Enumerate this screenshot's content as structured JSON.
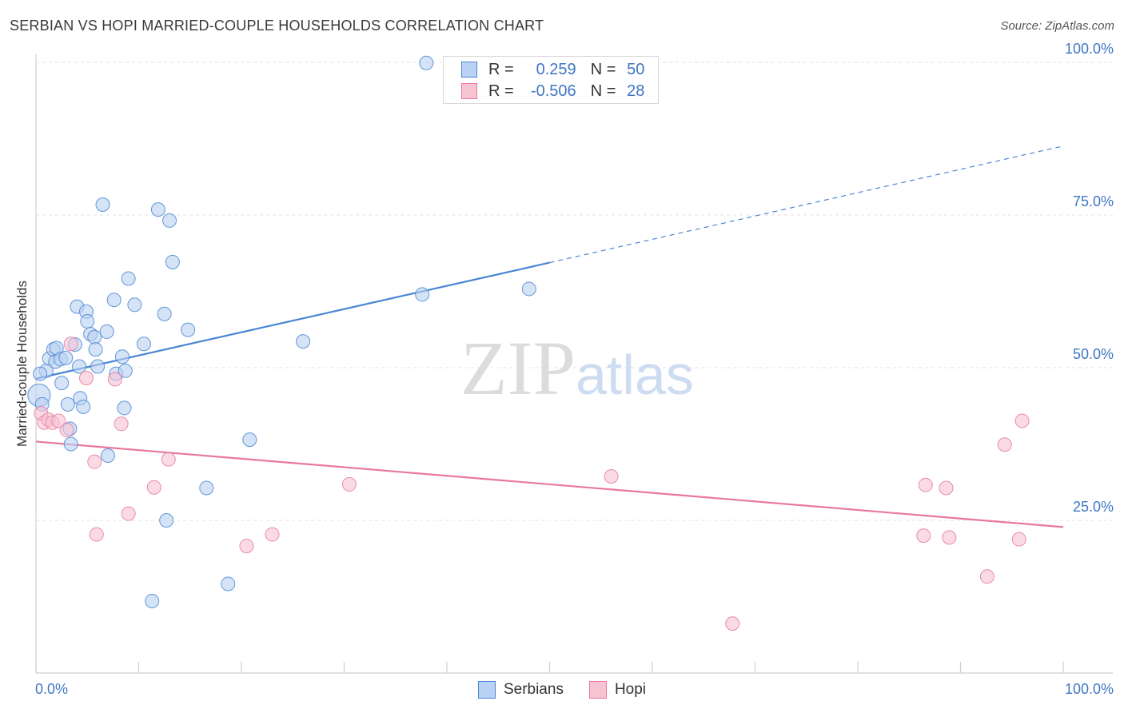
{
  "header": {
    "title": "SERBIAN VS HOPI MARRIED-COUPLE HOUSEHOLDS CORRELATION CHART",
    "source": "Source: ZipAtlas.com"
  },
  "watermark": {
    "zip": "ZIP",
    "atlas": "atlas"
  },
  "legend": {
    "r_label": "R =",
    "n_label": "N =",
    "rows": [
      {
        "name": "Serbians",
        "r": "0.259",
        "n": "50",
        "color": "#4a86d4",
        "fill": "#b9d1f2"
      },
      {
        "name": "Hopi",
        "r": "-0.506",
        "n": "28",
        "color": "#e8799d",
        "fill": "#f6c3d3"
      }
    ]
  },
  "chart_data": {
    "type": "scatter",
    "title": "SERBIAN VS HOPI MARRIED-COUPLE HOUSEHOLDS CORRELATION CHART",
    "xlabel": "",
    "ylabel": "Married-couple Households",
    "xlim": [
      0,
      100
    ],
    "ylim": [
      0,
      100
    ],
    "x_tick_labels": {
      "min": "0.0%",
      "max": "100.0%"
    },
    "y_ticks": [
      25,
      50,
      75,
      100
    ],
    "y_tick_labels": [
      "25.0%",
      "50.0%",
      "75.0%",
      "100.0%"
    ],
    "grid": true,
    "series": [
      {
        "name": "Serbians",
        "color": "#4a86d4",
        "fill": "#b9d1f2",
        "trend": {
          "x0": 0,
          "y0": 48.2,
          "x1": 50,
          "y1": 67.2,
          "dash_to_x": 100,
          "dash_to_y": 86.3
        },
        "points": [
          {
            "x": 0.3,
            "y": 45.5,
            "r": 14
          },
          {
            "x": 0.6,
            "y": 44.0
          },
          {
            "x": 1.0,
            "y": 49.5
          },
          {
            "x": 1.3,
            "y": 51.5
          },
          {
            "x": 1.7,
            "y": 53.0
          },
          {
            "x": 1.9,
            "y": 51.0
          },
          {
            "x": 2.0,
            "y": 53.2
          },
          {
            "x": 2.4,
            "y": 51.4
          },
          {
            "x": 2.5,
            "y": 47.5
          },
          {
            "x": 2.9,
            "y": 51.6
          },
          {
            "x": 3.1,
            "y": 44.0
          },
          {
            "x": 3.3,
            "y": 40.0
          },
          {
            "x": 3.4,
            "y": 37.5
          },
          {
            "x": 3.8,
            "y": 53.8
          },
          {
            "x": 4.0,
            "y": 60.0
          },
          {
            "x": 4.2,
            "y": 50.2
          },
          {
            "x": 4.3,
            "y": 45.0
          },
          {
            "x": 4.6,
            "y": 43.6
          },
          {
            "x": 4.9,
            "y": 59.2
          },
          {
            "x": 5.0,
            "y": 57.6
          },
          {
            "x": 5.3,
            "y": 55.5
          },
          {
            "x": 5.7,
            "y": 55.0
          },
          {
            "x": 5.8,
            "y": 53.0
          },
          {
            "x": 6.0,
            "y": 50.2
          },
          {
            "x": 6.5,
            "y": 76.7
          },
          {
            "x": 6.9,
            "y": 55.9
          },
          {
            "x": 7.0,
            "y": 35.6
          },
          {
            "x": 7.6,
            "y": 61.1
          },
          {
            "x": 7.8,
            "y": 49.0
          },
          {
            "x": 8.4,
            "y": 51.8
          },
          {
            "x": 8.6,
            "y": 43.4
          },
          {
            "x": 8.7,
            "y": 49.5
          },
          {
            "x": 9.0,
            "y": 64.6
          },
          {
            "x": 9.6,
            "y": 60.3
          },
          {
            "x": 10.5,
            "y": 53.9
          },
          {
            "x": 11.9,
            "y": 75.9
          },
          {
            "x": 12.5,
            "y": 58.8
          },
          {
            "x": 12.7,
            "y": 25.0
          },
          {
            "x": 13.0,
            "y": 74.1
          },
          {
            "x": 13.3,
            "y": 67.3
          },
          {
            "x": 14.8,
            "y": 56.2
          },
          {
            "x": 16.6,
            "y": 30.3
          },
          {
            "x": 18.7,
            "y": 14.6
          },
          {
            "x": 11.3,
            "y": 11.8
          },
          {
            "x": 20.8,
            "y": 38.2
          },
          {
            "x": 26.0,
            "y": 54.3
          },
          {
            "x": 37.6,
            "y": 62.0
          },
          {
            "x": 38.0,
            "y": 99.9
          },
          {
            "x": 48.0,
            "y": 62.9
          },
          {
            "x": 0.4,
            "y": 49.0
          }
        ]
      },
      {
        "name": "Hopi",
        "color": "#e8799d",
        "fill": "#f6c3d3",
        "trend": {
          "x0": 0,
          "y0": 37.9,
          "x1": 100,
          "y1": 23.9
        },
        "points": [
          {
            "x": 0.5,
            "y": 42.5
          },
          {
            "x": 0.8,
            "y": 41.0
          },
          {
            "x": 1.2,
            "y": 41.5
          },
          {
            "x": 1.6,
            "y": 41.0
          },
          {
            "x": 2.2,
            "y": 41.3
          },
          {
            "x": 3.0,
            "y": 39.8
          },
          {
            "x": 3.4,
            "y": 53.9
          },
          {
            "x": 4.9,
            "y": 48.3
          },
          {
            "x": 5.7,
            "y": 34.6
          },
          {
            "x": 5.9,
            "y": 22.7
          },
          {
            "x": 7.7,
            "y": 48.1
          },
          {
            "x": 8.3,
            "y": 40.8
          },
          {
            "x": 9.0,
            "y": 26.1
          },
          {
            "x": 11.5,
            "y": 30.4
          },
          {
            "x": 12.9,
            "y": 35.0
          },
          {
            "x": 20.5,
            "y": 20.8
          },
          {
            "x": 23.0,
            "y": 22.7
          },
          {
            "x": 30.5,
            "y": 30.9
          },
          {
            "x": 56.0,
            "y": 32.2
          },
          {
            "x": 67.8,
            "y": 8.1
          },
          {
            "x": 86.4,
            "y": 22.5
          },
          {
            "x": 86.6,
            "y": 30.8
          },
          {
            "x": 88.6,
            "y": 30.3
          },
          {
            "x": 88.9,
            "y": 22.2
          },
          {
            "x": 92.6,
            "y": 15.8
          },
          {
            "x": 94.3,
            "y": 37.4
          },
          {
            "x": 95.7,
            "y": 21.9
          },
          {
            "x": 96.0,
            "y": 41.3
          }
        ]
      }
    ]
  }
}
